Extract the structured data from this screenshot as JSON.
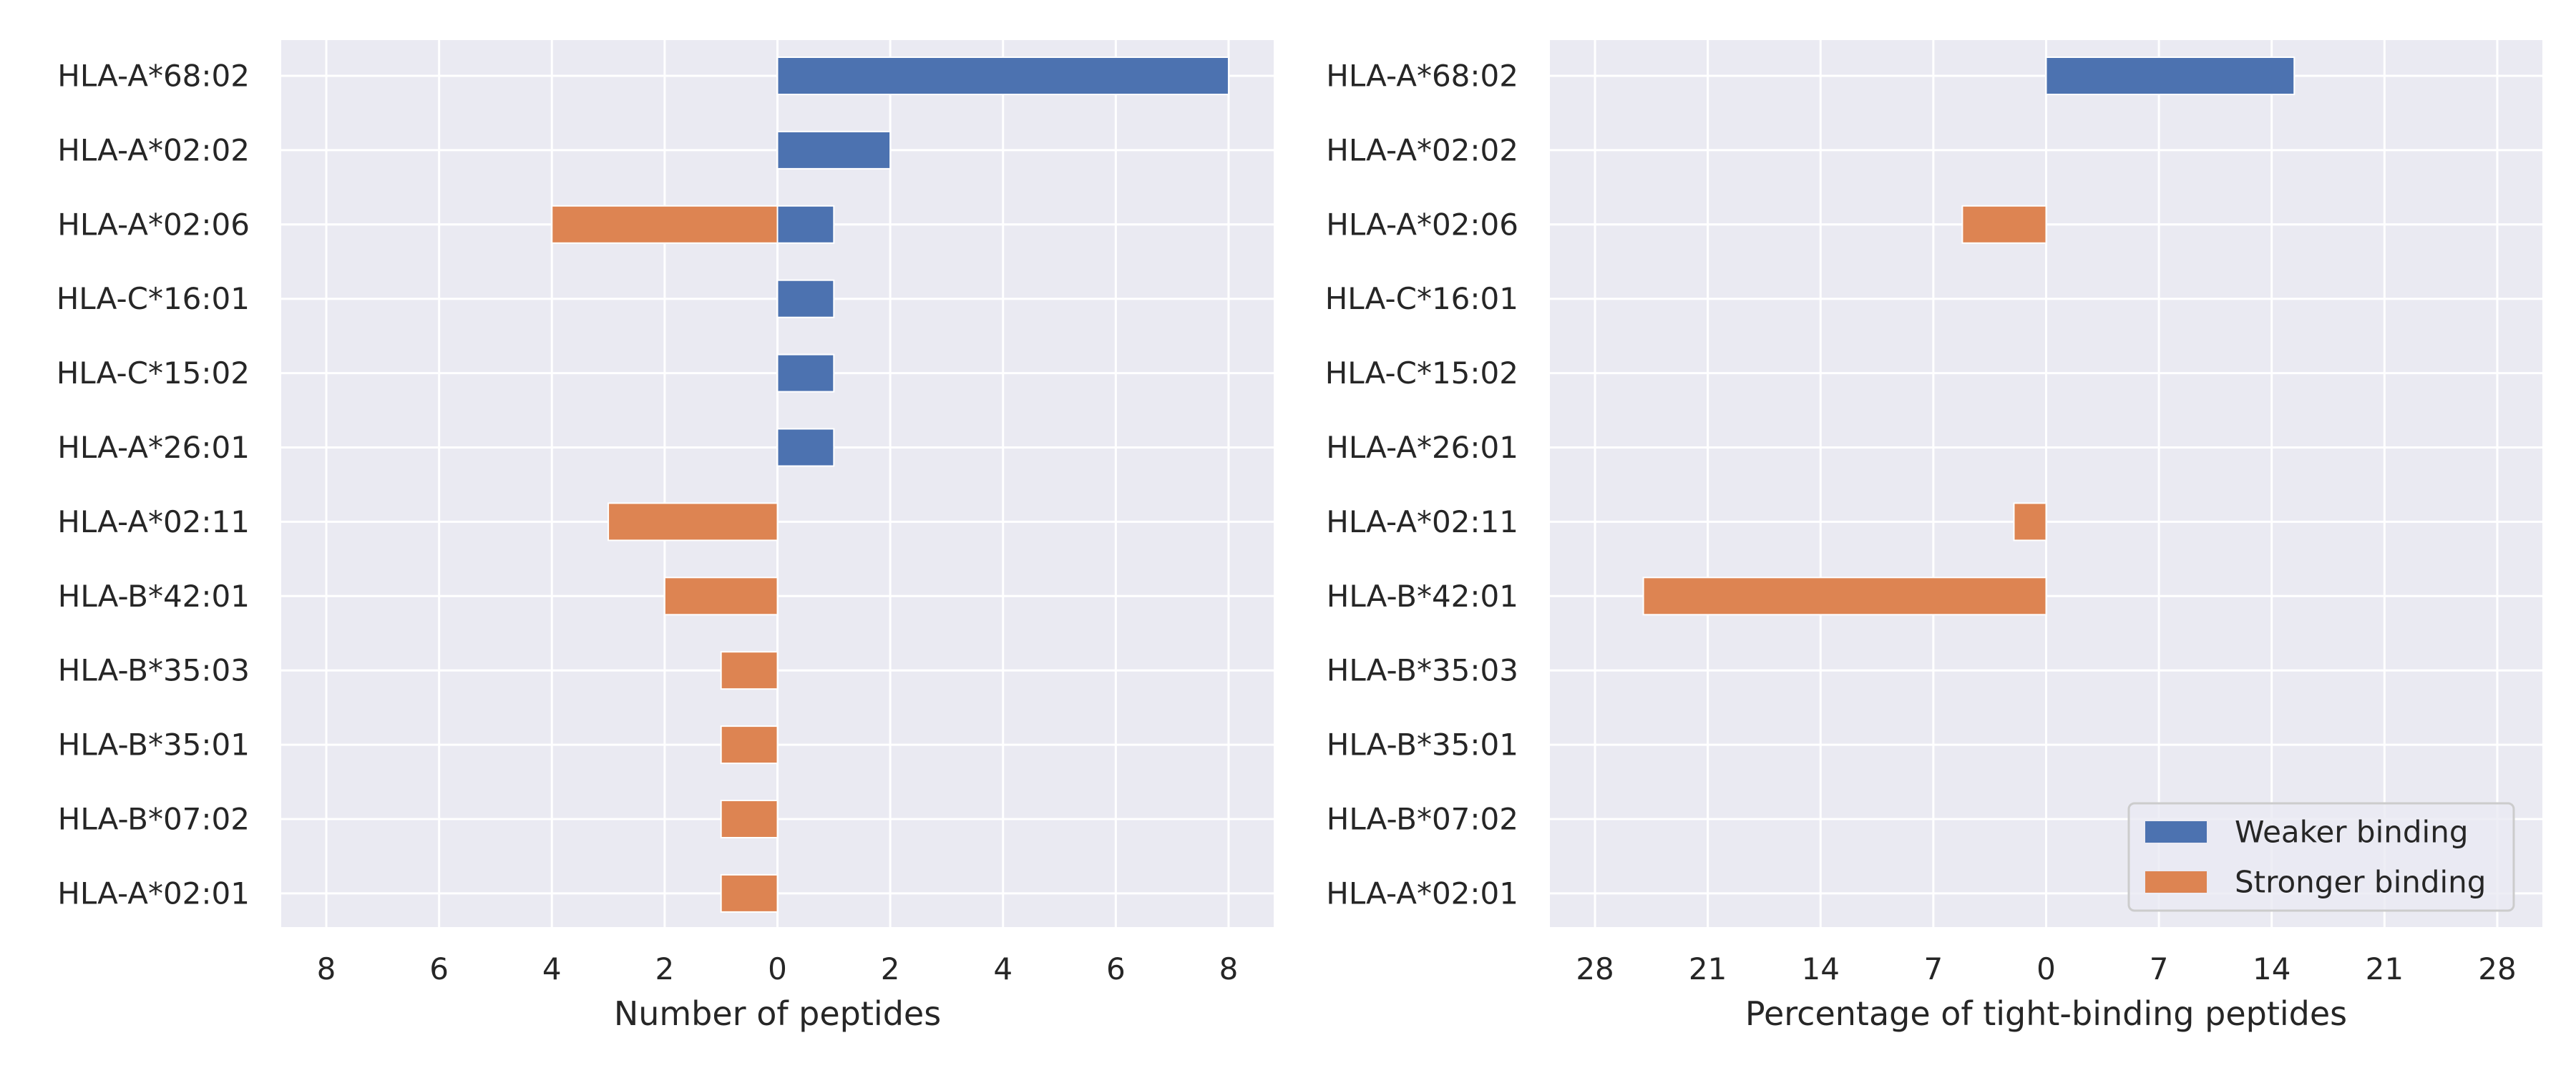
{
  "colors": {
    "weaker": "#4c72b0",
    "stronger": "#dd8452",
    "panel_bg": "#eaeaf2",
    "grid": "#ffffff",
    "text": "#262626"
  },
  "chart_data": [
    {
      "type": "bar",
      "orientation": "horizontal-diverging",
      "categories": [
        "HLA-A*68:02",
        "HLA-A*02:02",
        "HLA-A*02:06",
        "HLA-C*16:01",
        "HLA-C*15:02",
        "HLA-A*26:01",
        "HLA-A*02:11",
        "HLA-B*42:01",
        "HLA-B*35:03",
        "HLA-B*35:01",
        "HLA-B*07:02",
        "HLA-A*02:01"
      ],
      "series": [
        {
          "name": "Weaker binding",
          "direction": "right",
          "values": [
            8,
            2,
            1,
            1,
            1,
            1,
            0,
            0,
            0,
            0,
            0,
            0
          ]
        },
        {
          "name": "Stronger binding",
          "direction": "left",
          "values": [
            0,
            0,
            4,
            0,
            0,
            0,
            3,
            2,
            1,
            1,
            1,
            1
          ]
        }
      ],
      "xlabel": "Number of peptides",
      "xlim": [
        -8.8,
        8.8
      ],
      "xticks": [
        -8,
        -6,
        -4,
        -2,
        0,
        2,
        4,
        6,
        8
      ],
      "xtick_labels": [
        "8",
        "6",
        "4",
        "2",
        "0",
        "2",
        "4",
        "6",
        "8"
      ],
      "grid": true
    },
    {
      "type": "bar",
      "orientation": "horizontal-diverging",
      "categories": [
        "HLA-A*68:02",
        "HLA-A*02:02",
        "HLA-A*02:06",
        "HLA-C*16:01",
        "HLA-C*15:02",
        "HLA-A*26:01",
        "HLA-A*02:11",
        "HLA-B*42:01",
        "HLA-B*35:03",
        "HLA-B*35:01",
        "HLA-B*07:02",
        "HLA-A*02:01"
      ],
      "series": [
        {
          "name": "Weaker binding",
          "direction": "right",
          "values": [
            15.4,
            0,
            0,
            0,
            0,
            0,
            0,
            0,
            0,
            0,
            0,
            0
          ]
        },
        {
          "name": "Stronger binding",
          "direction": "left",
          "values": [
            0,
            0,
            5.2,
            0,
            0,
            0,
            2.0,
            25.0,
            0,
            0,
            0,
            0
          ]
        }
      ],
      "xlabel": "Percentage of tight-binding peptides",
      "xlim": [
        -30.8,
        30.8
      ],
      "xticks": [
        -28,
        -21,
        -14,
        -7,
        0,
        7,
        14,
        21,
        28
      ],
      "xtick_labels": [
        "28",
        "21",
        "14",
        "7",
        "0",
        "7",
        "14",
        "21",
        "28"
      ],
      "grid": true,
      "legend": {
        "placement": "lower-right",
        "entries": [
          "Weaker binding",
          "Stronger binding"
        ]
      }
    }
  ]
}
